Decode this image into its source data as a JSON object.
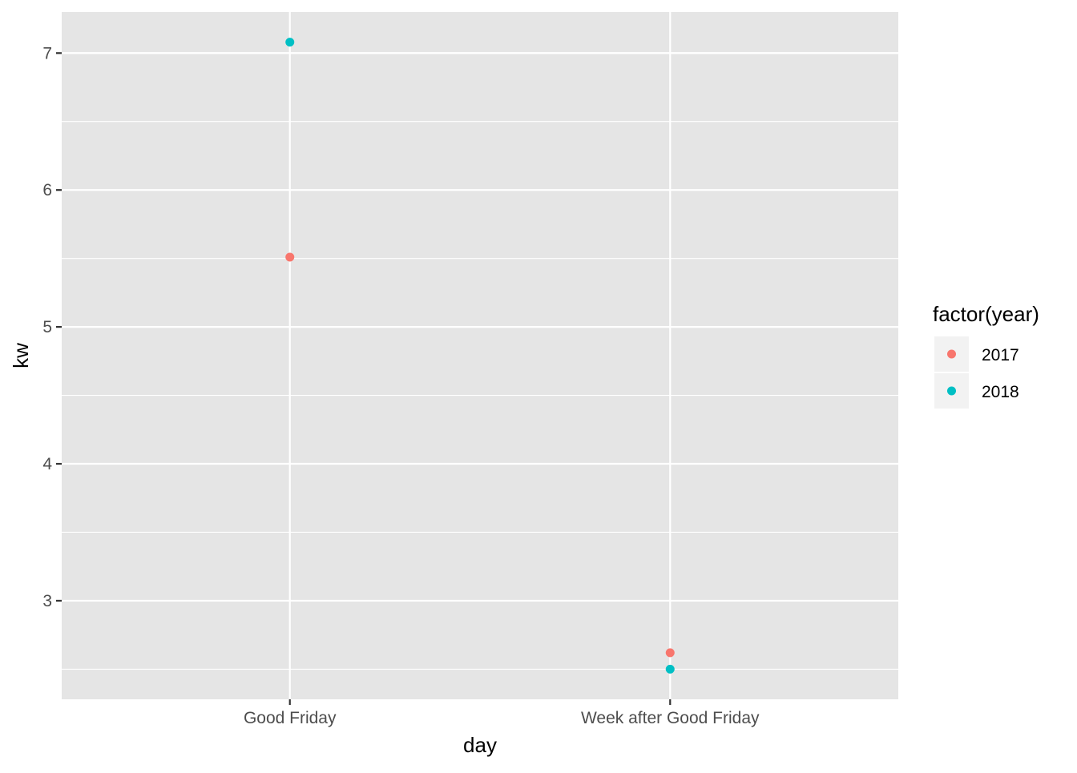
{
  "chart_data": {
    "type": "scatter",
    "title": "",
    "xlabel": "day",
    "ylabel": "kw",
    "categories": [
      "Good Friday",
      "Week after Good Friday"
    ],
    "ylim": [
      2.28,
      7.3
    ],
    "yticks": [
      3,
      4,
      5,
      6,
      7
    ],
    "grid": true,
    "panel_background": "#e5e5e5",
    "grid_color": "#ffffff",
    "legend": {
      "title": "factor(year)",
      "position": "right"
    },
    "series": [
      {
        "name": "2017",
        "color": "#f8766d",
        "points": [
          {
            "x": "Good Friday",
            "y": 5.51
          },
          {
            "x": "Week after Good Friday",
            "y": 2.62
          }
        ]
      },
      {
        "name": "2018",
        "color": "#00bfc4",
        "points": [
          {
            "x": "Good Friday",
            "y": 7.08
          },
          {
            "x": "Week after Good Friday",
            "y": 2.5
          }
        ]
      }
    ]
  }
}
